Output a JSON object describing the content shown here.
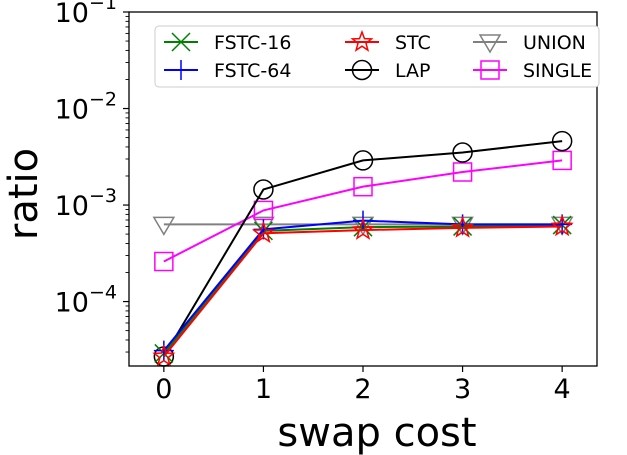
{
  "chart_data": {
    "type": "line",
    "title": "",
    "xlabel": "swap cost",
    "ylabel": "ratio",
    "yscale": "log",
    "xlim": [
      -0.35,
      4.35
    ],
    "ylim": [
      2.15e-05,
      0.1
    ],
    "x": [
      0,
      1,
      2,
      3,
      4
    ],
    "x_ticks": [
      "0",
      "1",
      "2",
      "3",
      "4"
    ],
    "y_ticks": [
      {
        "value": 0.0001,
        "base": "10",
        "exp": "−4"
      },
      {
        "value": 0.001,
        "base": "10",
        "exp": "−3"
      },
      {
        "value": 0.01,
        "base": "10",
        "exp": "−2"
      },
      {
        "value": 0.1,
        "base": "10",
        "exp": "−1"
      }
    ],
    "grid": false,
    "legend_position": "top",
    "series": [
      {
        "name": "FSTC-16",
        "color": "#008000",
        "marker": "x-marker",
        "values": [
          2.9e-05,
          0.00054,
          0.00059,
          0.0006,
          0.00062
        ]
      },
      {
        "name": "FSTC-64",
        "color": "#0000ff",
        "marker": "plus-marker",
        "values": [
          3.1e-05,
          0.00056,
          0.00069,
          0.00063,
          0.00063
        ]
      },
      {
        "name": "STC",
        "color": "#ff0000",
        "marker": "star-marker",
        "values": [
          2.7e-05,
          0.00051,
          0.00055,
          0.00058,
          0.0006
        ]
      },
      {
        "name": "LAP",
        "color": "#000000",
        "marker": "circle-marker",
        "values": [
          2.7e-05,
          0.00145,
          0.0029,
          0.0035,
          0.0046
        ]
      },
      {
        "name": "UNION",
        "color": "#808080",
        "marker": "triangle-down-marker",
        "values": [
          0.00063,
          0.00063,
          0.00063,
          0.00063,
          0.00063
        ]
      },
      {
        "name": "SINGLE",
        "color": "#ff00ff",
        "marker": "square-marker",
        "values": [
          0.00026,
          0.00088,
          0.00155,
          0.0022,
          0.0029
        ]
      }
    ]
  }
}
